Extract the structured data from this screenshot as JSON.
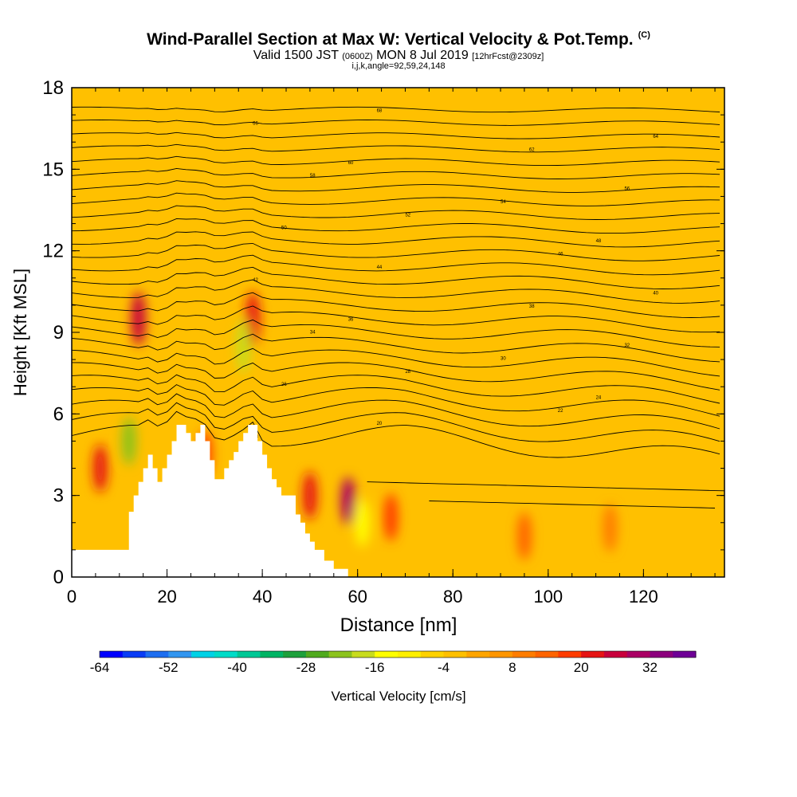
{
  "title": {
    "main": "Wind-Parallel Section at Max W: Vertical Velocity & Pot.Temp.",
    "copyright": "(C)",
    "valid_prefix": "Valid 1500 JST",
    "valid_utc": "(0600Z)",
    "valid_date": "MON 8 Jul 2019",
    "forecast": "[12hrFcst@2309z]",
    "indices": "i,j,k,angle=92,59,24,148"
  },
  "chart_data": {
    "type": "heatmap",
    "xlabel": "Distance [nm]",
    "ylabel": "Height [Kft MSL]",
    "xlim": [
      0,
      137
    ],
    "ylim": [
      0,
      18
    ],
    "x_ticks": [
      0,
      20,
      40,
      60,
      80,
      100,
      120
    ],
    "y_ticks": [
      0,
      3,
      6,
      9,
      12,
      15,
      18
    ],
    "colorbar": {
      "label": "Vertical Velocity [cm/s]",
      "tick_labels": [
        "-64",
        "-52",
        "-40",
        "-28",
        "-16",
        "-4",
        "8",
        "20",
        "32"
      ],
      "min": -64,
      "max": 40,
      "step": 4,
      "colors": [
        "#0000ff",
        "#0a3cf5",
        "#1e6ef0",
        "#3296f0",
        "#00d2e6",
        "#00dcc8",
        "#00c896",
        "#00b464",
        "#1ea03c",
        "#50aa1e",
        "#8cc31e",
        "#c8dc1e",
        "#ffff00",
        "#fff000",
        "#ffd200",
        "#ffc000",
        "#ffa500",
        "#ff9600",
        "#ff7d00",
        "#ff6400",
        "#ff3c00",
        "#e61414",
        "#c8003c",
        "#aa0064",
        "#8c007d",
        "#6e0096"
      ]
    },
    "terrain_profile": {
      "distance_nm": [
        0,
        2,
        4,
        6,
        8,
        10,
        10.5,
        11.5,
        12,
        13,
        14,
        15,
        16,
        17,
        18,
        19,
        20,
        21,
        22,
        23,
        24,
        25,
        26,
        27,
        28,
        29,
        30,
        31,
        32,
        33,
        34,
        35,
        36,
        37,
        38,
        39,
        40,
        41,
        42,
        43,
        44,
        45,
        46,
        47,
        48,
        49,
        50,
        51,
        52,
        53,
        54,
        55,
        56,
        57,
        58,
        59,
        60
      ],
      "height_kft": [
        1.0,
        1.0,
        1.0,
        1.0,
        1.0,
        1.0,
        1.0,
        1.0,
        2.4,
        3.0,
        3.5,
        4.0,
        4.5,
        4.0,
        3.5,
        4.0,
        4.5,
        5.0,
        5.6,
        5.6,
        5.3,
        5.0,
        5.3,
        5.6,
        5.0,
        4.3,
        3.6,
        3.6,
        4.0,
        4.3,
        4.6,
        5.0,
        5.3,
        5.6,
        5.6,
        5.0,
        4.5,
        4.0,
        3.6,
        3.3,
        3.0,
        3.0,
        3.0,
        2.3,
        2.0,
        1.6,
        1.3,
        1.0,
        1.0,
        0.6,
        0.6,
        0.3,
        0.3,
        0.3,
        0.0,
        0.0,
        0.0
      ]
    },
    "vertical_velocity_features": [
      {
        "distance_nm": 14,
        "height_kft": 9.5,
        "w_cms": 24
      },
      {
        "distance_nm": 38,
        "height_kft": 9.5,
        "w_cms": 20
      },
      {
        "distance_nm": 36,
        "height_kft": 8.5,
        "w_cms": -18
      },
      {
        "distance_nm": 12,
        "height_kft": 5.0,
        "w_cms": -24
      },
      {
        "distance_nm": 6,
        "height_kft": 4.0,
        "w_cms": 20
      },
      {
        "distance_nm": 50,
        "height_kft": 3.0,
        "w_cms": 20
      },
      {
        "distance_nm": 58,
        "height_kft": 2.8,
        "w_cms": 28
      },
      {
        "distance_nm": 61,
        "height_kft": 2.0,
        "w_cms": -16
      },
      {
        "distance_nm": 67,
        "height_kft": 2.2,
        "w_cms": 16
      },
      {
        "distance_nm": 95,
        "height_kft": 1.5,
        "w_cms": 12
      },
      {
        "distance_nm": 113,
        "height_kft": 1.8,
        "w_cms": 8
      },
      {
        "distance_nm": 28,
        "height_kft": 4.5,
        "w_cms": 16
      }
    ],
    "theta_contour_labels": [
      "18",
      "20",
      "22",
      "24",
      "26",
      "28",
      "30",
      "32",
      "34",
      "36",
      "38",
      "40",
      "42",
      "44",
      "46",
      "48",
      "50",
      "52",
      "54",
      "56",
      "58",
      "60",
      "62",
      "64",
      "66",
      "68",
      "70"
    ]
  }
}
